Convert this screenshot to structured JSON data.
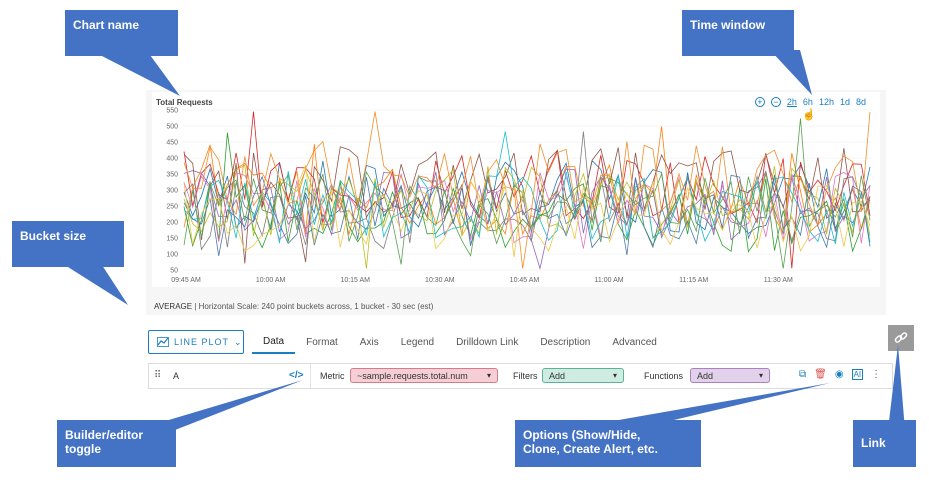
{
  "chart": {
    "title": "Total Requests",
    "zoom_in_icon": "zoom-in-icon",
    "zoom_out_icon": "zoom-out-icon",
    "time_windows": [
      "2h",
      "6h",
      "12h",
      "1d",
      "8d"
    ],
    "active_window": "2h",
    "y_ticks": [
      "550",
      "500",
      "450",
      "400",
      "350",
      "300",
      "250",
      "200",
      "150",
      "100",
      "50"
    ],
    "x_ticks": [
      "09:45 AM",
      "10:00 AM",
      "10:15 AM",
      "10:30 AM",
      "10:45 AM",
      "11:00 AM",
      "11:15 AM",
      "11:30 AM"
    ],
    "footer_summary": "AVERAGE",
    "footer_detail": "Horizontal Scale: 240 point buckets across, 1 bucket - 30 sec (est)",
    "series_colors": [
      "#1f77b4",
      "#ff7f0e",
      "#2ca02c",
      "#d62728",
      "#9467bd",
      "#8c564b",
      "#e377c2",
      "#7f7f7f",
      "#bcbd22",
      "#17becf",
      "#4e79a7",
      "#f28e2b",
      "#59a14f",
      "#edc948"
    ]
  },
  "editor": {
    "plot_type": "LINE PLOT",
    "tabs": [
      "Data",
      "Format",
      "Axis",
      "Legend",
      "Drilldown Link",
      "Description",
      "Advanced"
    ],
    "active_tab": "Data",
    "query": {
      "name": "A",
      "code_toggle": "</>",
      "metric_label": "Metric",
      "metric_value": "~sample.requests.total.num",
      "filters_label": "Filters",
      "filters_value": "Add",
      "functions_label": "Functions",
      "functions_value": "Add"
    }
  },
  "callouts": {
    "chart_name": "Chart name",
    "time_window": "Time window",
    "bucket_size": "Bucket size",
    "builder_line1": "Builder/editor",
    "builder_line2": "toggle",
    "options_line1": "Options (Show/Hide,",
    "options_line2": "Clone, Create Alert, etc.",
    "link": "Link"
  }
}
